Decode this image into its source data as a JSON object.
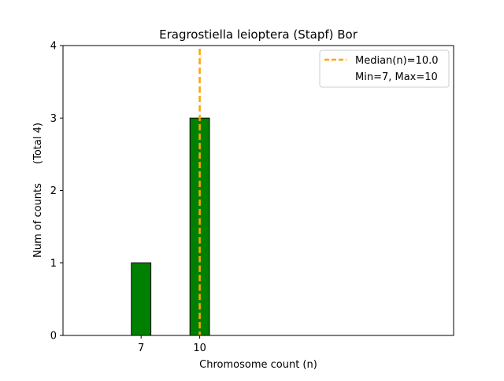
{
  "chart_data": {
    "type": "bar",
    "title": "Eragrostiella leioptera (Stapf) Bor",
    "xlabel": "Chromosome count (n)",
    "ylabel": "Num of counts",
    "ylabel_extra": "(Total 4)",
    "x": [
      7,
      10
    ],
    "values": [
      1,
      3
    ],
    "xticks": [
      "7",
      "10"
    ],
    "yticks": [
      "0",
      "1",
      "2",
      "3",
      "4"
    ],
    "xlim": [
      3,
      23
    ],
    "ylim": [
      0,
      4
    ],
    "bar_width": 1,
    "bar_color": "#008000",
    "bar_edge_color": "#000000",
    "median": 10.0,
    "median_color": "#FFA500",
    "legend": {
      "placement": "top-right",
      "median_label": "Median(n)=10.0",
      "range_label": "Min=7, Max=10"
    },
    "grid": false
  }
}
